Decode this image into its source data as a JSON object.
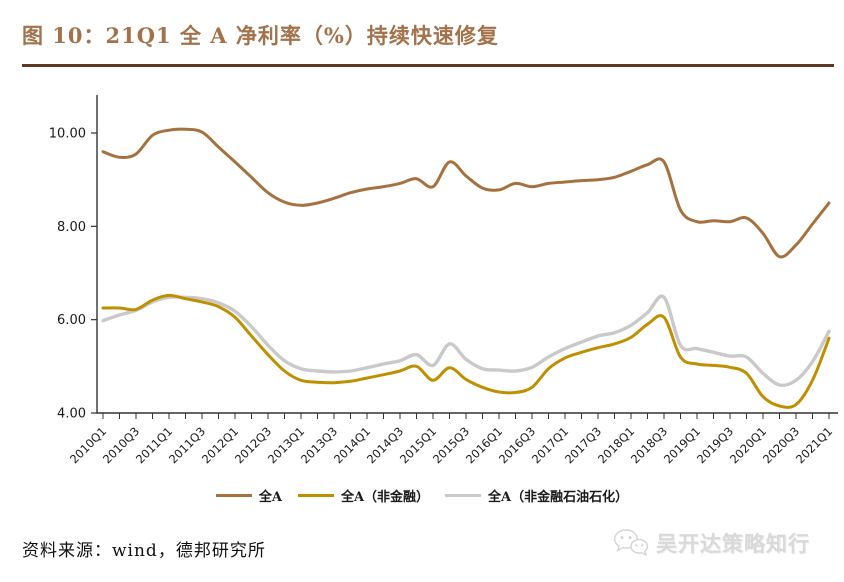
{
  "figure": {
    "title": "图 10：21Q1 全 A 净利率（%）持续快速修复",
    "source_label": "资料来源：wind，德邦研究所",
    "watermark_text": "吴开达策略知行"
  },
  "colors": {
    "title_text": "#a3714a",
    "title_rule": "#5c3a21",
    "axis": "#333333",
    "tick_label": "#1a1a1a",
    "watermark": "#d7d7d7",
    "series_all_a": "#a5713f",
    "series_non_financial": "#bf8f00",
    "series_non_financial_petro": "#c9c9c9"
  },
  "chart_data": {
    "type": "line",
    "title": "",
    "xlabel": "",
    "ylabel": "",
    "grid": false,
    "legend_position": "bottom-center",
    "ylim": [
      4,
      10.8
    ],
    "yticks": [
      "4.00",
      "6.00",
      "8.00",
      "10.00"
    ],
    "x_range": [
      "2010Q1",
      "2021Q1"
    ],
    "visible_x_tick_labels": [
      "2010Q1",
      "2010Q3",
      "2011Q1",
      "2011Q3",
      "2012Q1",
      "2012Q3",
      "2013Q1",
      "2013Q3",
      "2014Q1",
      "2014Q3",
      "2015Q1",
      "2015Q3",
      "2016Q1",
      "2016Q3",
      "2017Q1",
      "2017Q3",
      "2018Q1",
      "2018Q3",
      "2019Q1",
      "2019Q3",
      "2020Q1",
      "2020Q3",
      "2021Q1"
    ],
    "categories": [
      "2010Q1",
      "2010Q2",
      "2010Q3",
      "2010Q4",
      "2011Q1",
      "2011Q2",
      "2011Q3",
      "2011Q4",
      "2012Q1",
      "2012Q2",
      "2012Q3",
      "2012Q4",
      "2013Q1",
      "2013Q2",
      "2013Q3",
      "2013Q4",
      "2014Q1",
      "2014Q2",
      "2014Q3",
      "2014Q4",
      "2015Q1",
      "2015Q2",
      "2015Q3",
      "2015Q4",
      "2016Q1",
      "2016Q2",
      "2016Q3",
      "2016Q4",
      "2017Q1",
      "2017Q2",
      "2017Q3",
      "2017Q4",
      "2018Q1",
      "2018Q2",
      "2018Q3",
      "2018Q4",
      "2019Q1",
      "2019Q2",
      "2019Q3",
      "2019Q4",
      "2020Q1",
      "2020Q2",
      "2020Q3",
      "2020Q4",
      "2021Q1"
    ],
    "series": [
      {
        "name": "全A",
        "color": "#a5713f",
        "stroke_width": 3,
        "values": [
          9.6,
          9.48,
          9.55,
          9.95,
          10.06,
          10.08,
          10.02,
          9.7,
          9.38,
          9.05,
          8.72,
          8.52,
          8.45,
          8.5,
          8.6,
          8.72,
          8.8,
          8.85,
          8.92,
          9.02,
          8.85,
          9.38,
          9.08,
          8.82,
          8.78,
          8.92,
          8.85,
          8.92,
          8.95,
          8.98,
          9.0,
          9.05,
          9.18,
          9.32,
          9.38,
          8.35,
          8.1,
          8.12,
          8.1,
          8.18,
          7.85,
          7.35,
          7.6,
          8.05,
          8.5
        ]
      },
      {
        "name": "全A（非金融）",
        "color": "#bf8f00",
        "stroke_width": 3,
        "values": [
          6.25,
          6.25,
          6.22,
          6.42,
          6.52,
          6.45,
          6.38,
          6.28,
          6.05,
          5.65,
          5.25,
          4.9,
          4.7,
          4.66,
          4.65,
          4.68,
          4.75,
          4.82,
          4.9,
          5.0,
          4.7,
          4.97,
          4.72,
          4.55,
          4.45,
          4.44,
          4.55,
          4.95,
          5.18,
          5.3,
          5.4,
          5.48,
          5.62,
          5.9,
          6.05,
          5.2,
          5.05,
          5.02,
          4.98,
          4.85,
          4.35,
          4.15,
          4.18,
          4.7,
          5.6
        ]
      },
      {
        "name": "全A（非金融石油石化）",
        "color": "#c9c9c9",
        "stroke_width": 3.4,
        "values": [
          5.98,
          6.1,
          6.2,
          6.38,
          6.48,
          6.48,
          6.45,
          6.36,
          6.18,
          5.85,
          5.45,
          5.12,
          4.95,
          4.9,
          4.88,
          4.9,
          4.97,
          5.05,
          5.12,
          5.25,
          5.02,
          5.48,
          5.15,
          4.95,
          4.92,
          4.9,
          4.98,
          5.2,
          5.38,
          5.52,
          5.65,
          5.72,
          5.88,
          6.15,
          6.48,
          5.45,
          5.38,
          5.3,
          5.22,
          5.2,
          4.85,
          4.6,
          4.7,
          5.1,
          5.75
        ]
      }
    ]
  }
}
